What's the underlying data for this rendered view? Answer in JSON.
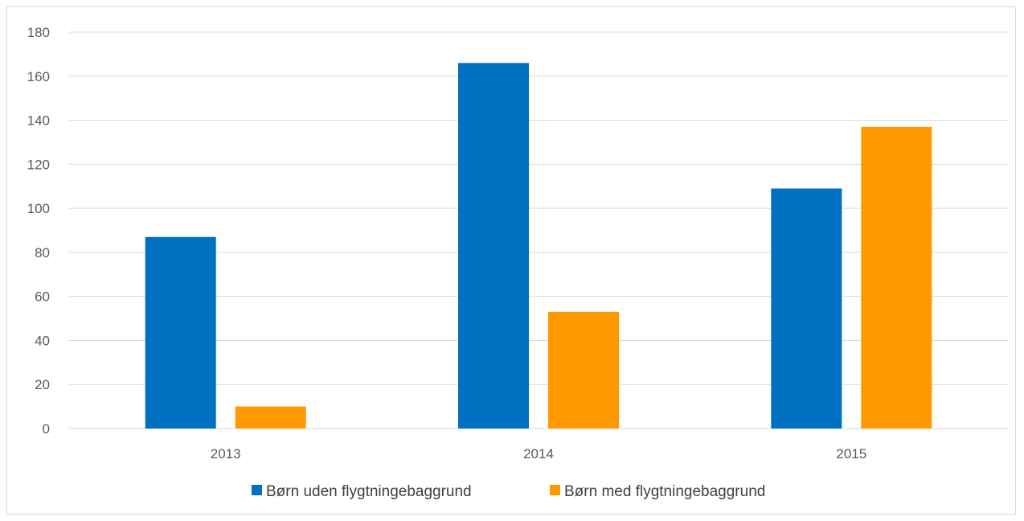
{
  "chart_data": {
    "type": "bar",
    "categories": [
      "2013",
      "2014",
      "2015"
    ],
    "series": [
      {
        "name": "Børn uden flygtningebaggrund",
        "values": [
          87,
          166,
          109
        ],
        "color": "#0070c0"
      },
      {
        "name": "Børn med flygtningebaggrund",
        "values": [
          10,
          53,
          137
        ],
        "color": "#ff9900"
      }
    ],
    "ylim": [
      0,
      180
    ],
    "yticks": [
      0,
      20,
      40,
      60,
      80,
      100,
      120,
      140,
      160,
      180
    ],
    "grid": true,
    "legend_position": "bottom"
  }
}
